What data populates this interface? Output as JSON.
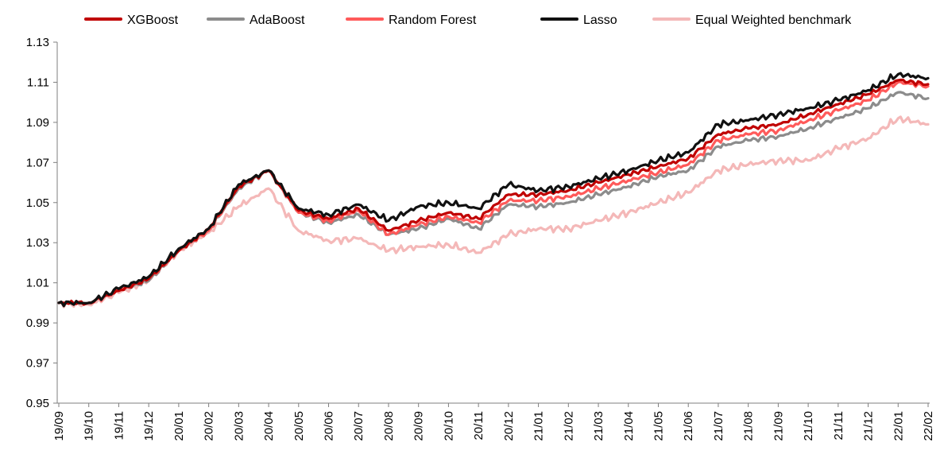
{
  "chart_data": {
    "type": "line",
    "title": "",
    "xlabel": "",
    "ylabel": "",
    "ylim": [
      0.95,
      1.13
    ],
    "yticks": [
      "0.95",
      "0.97",
      "0.99",
      "1.01",
      "1.03",
      "1.05",
      "1.07",
      "1.09",
      "1.11",
      "1.13"
    ],
    "categories": [
      "19/09",
      "19/10",
      "19/11",
      "19/12",
      "20/01",
      "20/02",
      "20/03",
      "20/04",
      "20/05",
      "20/06",
      "20/07",
      "20/08",
      "20/09",
      "20/10",
      "20/11",
      "20/12",
      "21/01",
      "21/02",
      "21/03",
      "21/04",
      "21/05",
      "21/06",
      "21/07",
      "21/08",
      "21/09",
      "21/10",
      "21/11",
      "21/12",
      "22/01",
      "22/02"
    ],
    "legend_position": "top",
    "grid": false,
    "series": [
      {
        "name": "XGBoost",
        "color": "#c00000",
        "values": [
          1.0,
          1.0,
          1.006,
          1.012,
          1.026,
          1.037,
          1.058,
          1.066,
          1.046,
          1.042,
          1.047,
          1.036,
          1.041,
          1.045,
          1.042,
          1.054,
          1.054,
          1.056,
          1.06,
          1.064,
          1.068,
          1.072,
          1.084,
          1.087,
          1.089,
          1.094,
          1.099,
          1.104,
          1.111,
          1.109
        ]
      },
      {
        "name": "AdaBoost",
        "color": "#8c8c8c",
        "values": [
          1.0,
          1.0,
          1.006,
          1.011,
          1.026,
          1.036,
          1.057,
          1.066,
          1.045,
          1.04,
          1.044,
          1.034,
          1.037,
          1.042,
          1.037,
          1.049,
          1.048,
          1.05,
          1.054,
          1.058,
          1.063,
          1.066,
          1.078,
          1.081,
          1.083,
          1.087,
          1.092,
          1.097,
          1.105,
          1.102
        ]
      },
      {
        "name": "Random Forest",
        "color": "#ff5a5a",
        "values": [
          1.0,
          1.0,
          1.006,
          1.012,
          1.026,
          1.036,
          1.058,
          1.066,
          1.045,
          1.041,
          1.046,
          1.034,
          1.039,
          1.043,
          1.04,
          1.051,
          1.051,
          1.053,
          1.057,
          1.061,
          1.065,
          1.069,
          1.081,
          1.084,
          1.086,
          1.091,
          1.096,
          1.101,
          1.11,
          1.108
        ]
      },
      {
        "name": "Lasso",
        "color": "#111111",
        "values": [
          1.0,
          1.0,
          1.007,
          1.013,
          1.027,
          1.037,
          1.059,
          1.066,
          1.047,
          1.044,
          1.049,
          1.041,
          1.048,
          1.05,
          1.047,
          1.059,
          1.056,
          1.058,
          1.062,
          1.066,
          1.071,
          1.075,
          1.089,
          1.091,
          1.094,
          1.097,
          1.101,
          1.106,
          1.114,
          1.112
        ]
      },
      {
        "name": "Equal Weighted benchmark",
        "color": "#f4b8b8",
        "values": [
          1.0,
          0.999,
          1.005,
          1.011,
          1.026,
          1.035,
          1.048,
          1.057,
          1.036,
          1.031,
          1.032,
          1.026,
          1.028,
          1.029,
          1.025,
          1.034,
          1.037,
          1.037,
          1.041,
          1.045,
          1.05,
          1.055,
          1.066,
          1.069,
          1.071,
          1.071,
          1.077,
          1.082,
          1.092,
          1.089
        ]
      }
    ]
  }
}
